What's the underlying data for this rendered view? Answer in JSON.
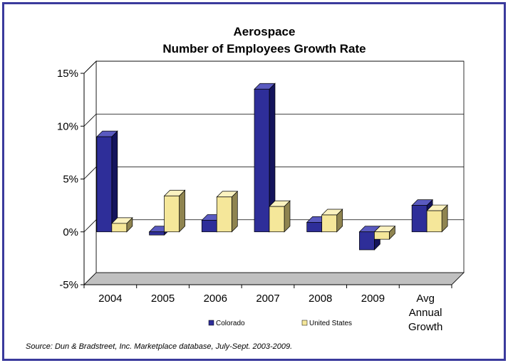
{
  "chart_data": {
    "type": "bar",
    "title_lines": [
      "Aerospace",
      "Number of Employees Growth Rate"
    ],
    "categories": [
      "2004",
      "2005",
      "2006",
      "2007",
      "2008",
      "2009",
      "Avg Annual Growth"
    ],
    "category_label_lines": [
      [
        "2004"
      ],
      [
        "2005"
      ],
      [
        "2006"
      ],
      [
        "2007"
      ],
      [
        "2008"
      ],
      [
        "2009"
      ],
      [
        "Avg",
        "Annual",
        "Growth"
      ]
    ],
    "series": [
      {
        "name": "Colorado",
        "values": [
          9.0,
          -0.3,
          1.1,
          13.5,
          0.9,
          -1.7,
          2.5
        ],
        "color": "#2e2e99",
        "side_color": "#14145c",
        "top_color": "#5a5ac0"
      },
      {
        "name": "United States",
        "values": [
          0.8,
          3.4,
          3.3,
          2.4,
          1.6,
          -0.7,
          2.0
        ],
        "color": "#f5e79a",
        "side_color": "#8f8450",
        "top_color": "#fbf2c0"
      }
    ],
    "yticks": [
      "15%",
      "10%",
      "5%",
      "0%",
      "-5%"
    ],
    "ytick_values": [
      15,
      10,
      5,
      0,
      -5
    ],
    "ylim": [
      -5,
      15
    ],
    "grid": true,
    "legend_position": "bottom",
    "xlabel": "",
    "ylabel": ""
  },
  "source_note": "Source: Dun & Bradstreet, Inc. Marketplace database, July-Sept. 2003-2009."
}
